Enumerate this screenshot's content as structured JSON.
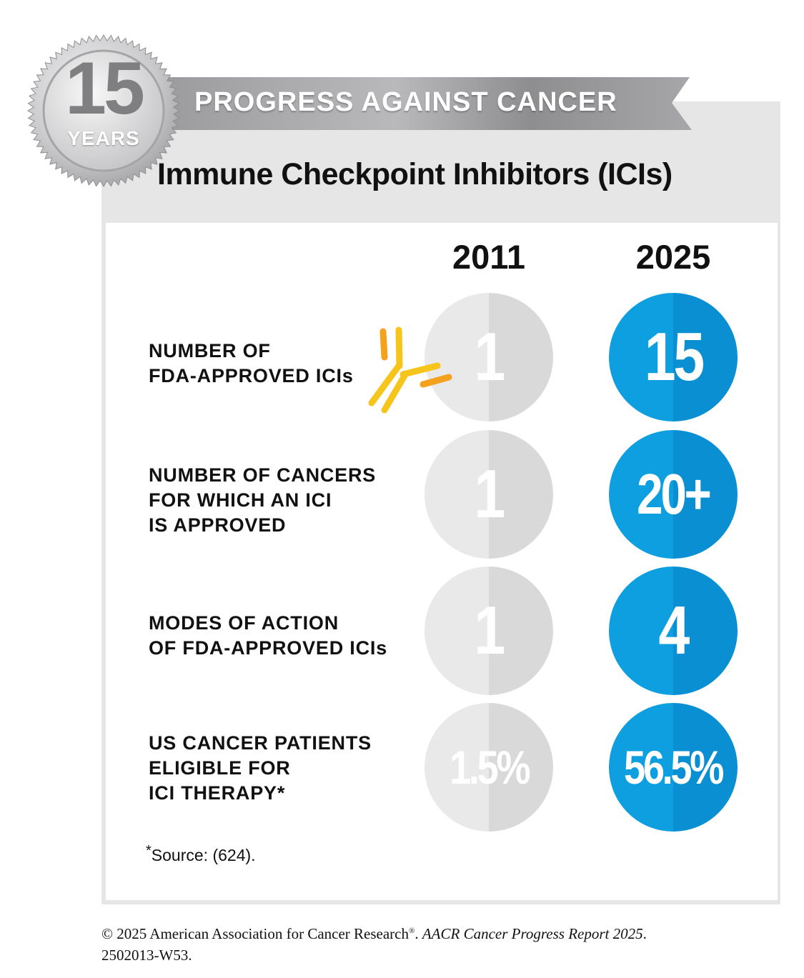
{
  "badge": {
    "number": "15",
    "label": "YEARS"
  },
  "banner": {
    "text": "PROGRESS AGAINST CANCER"
  },
  "title": "Immune Checkpoint Inhibitors (ICIs)",
  "years": {
    "left": "2011",
    "right": "2025"
  },
  "rows": [
    {
      "label": "NUMBER OF\nFDA-APPROVED ICIs",
      "value_2011": "1",
      "value_2025": "15"
    },
    {
      "label": "NUMBER OF CANCERS\nFOR WHICH AN ICI\nIS APPROVED",
      "value_2011": "1",
      "value_2025": "20+"
    },
    {
      "label": "MODES OF ACTION\nOF FDA-APPROVED ICIs",
      "value_2011": "1",
      "value_2025": "4"
    },
    {
      "label": "US CANCER PATIENTS\nELIGIBLE FOR\nICI THERAPY*",
      "value_2011": "1.5%",
      "value_2025": "56.5%"
    }
  ],
  "footnote": {
    "mark": "*",
    "text": "Source: (624)."
  },
  "copyright": {
    "line1_plain": "© 2025 American Association for Cancer Research",
    "registered": "®",
    "line1_sep": ". ",
    "line1_italic": "AACR Cancer Progress Report 2025",
    "line1_end": ".",
    "line2": "2502013-W53."
  },
  "colors": {
    "blue": "#0d9fe0",
    "light_gray": "#e9e9ea",
    "frame_gray": "#e6e6e7",
    "antibody_yellow": "#f6c51c",
    "antibody_orange": "#f4a11d"
  },
  "icons": {
    "badge": "silver-seal-icon",
    "molecule": "antibody-icon"
  }
}
